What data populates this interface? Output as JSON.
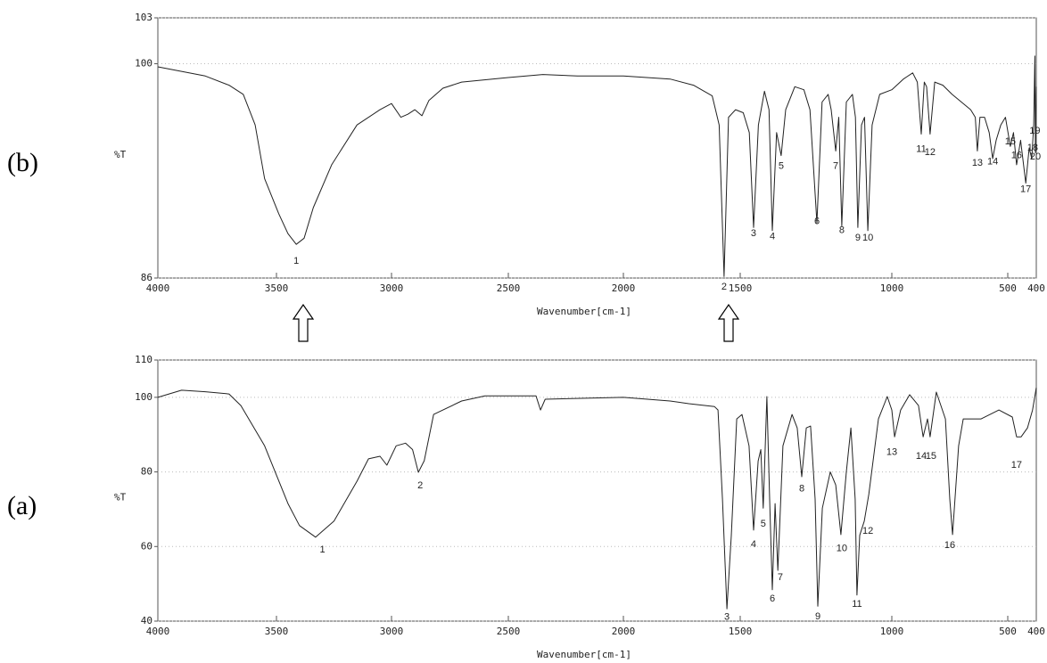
{
  "chart_data": [
    {
      "type": "line",
      "panel_label": "(b)",
      "ylabel": "%T",
      "xlabel": "Wavenumber[cm-1]",
      "xlim": [
        4000,
        400
      ],
      "xticks": [
        4000,
        3500,
        3000,
        2500,
        2000,
        1500,
        1000,
        500,
        400
      ],
      "ylim": [
        86,
        103
      ],
      "yticks": [
        86,
        100,
        103
      ],
      "grid": true,
      "color": "#222222",
      "x": [
        4000,
        3900,
        3800,
        3700,
        3640,
        3590,
        3550,
        3490,
        3450,
        3414,
        3380,
        3340,
        3260,
        3150,
        3050,
        3000,
        2960,
        2930,
        2900,
        2870,
        2840,
        2780,
        2700,
        2500,
        2350,
        2200,
        2000,
        1800,
        1700,
        1620,
        1590,
        1569,
        1550,
        1520,
        1490,
        1470,
        1456,
        1440,
        1420,
        1405,
        1394,
        1380,
        1365,
        1350,
        1320,
        1290,
        1270,
        1247,
        1230,
        1210,
        1200,
        1185,
        1175,
        1165,
        1150,
        1130,
        1120,
        1112,
        1100,
        1090,
        1079,
        1065,
        1040,
        1000,
        950,
        910,
        890,
        873,
        860,
        850,
        835,
        815,
        780,
        740,
        700,
        660,
        640,
        631,
        620,
        600,
        580,
        565,
        550,
        530,
        510,
        491,
        480,
        469,
        455,
        437,
        425,
        416,
        409,
        405,
        403,
        400
      ],
      "values": [
        99.8,
        99.5,
        99.2,
        98.6,
        98.0,
        96.0,
        92.5,
        90.2,
        88.9,
        88.2,
        88.6,
        90.6,
        93.4,
        96.0,
        97.0,
        97.4,
        96.5,
        96.7,
        97.0,
        96.6,
        97.6,
        98.4,
        98.8,
        99.1,
        99.3,
        99.2,
        99.2,
        99.0,
        98.6,
        97.9,
        96.0,
        86.1,
        96.5,
        97.0,
        96.8,
        95.5,
        89.3,
        96.0,
        98.2,
        97.0,
        89.1,
        95.5,
        94.0,
        97.0,
        98.5,
        98.3,
        97.0,
        89.6,
        97.5,
        98.0,
        97.0,
        94.3,
        96.5,
        89.4,
        97.5,
        98.0,
        96.5,
        89.3,
        96.0,
        96.5,
        89.1,
        96.0,
        98.0,
        98.3,
        99.0,
        99.4,
        98.8,
        95.4,
        98.8,
        98.5,
        95.4,
        98.8,
        98.6,
        98.0,
        97.5,
        97.0,
        96.5,
        94.3,
        96.5,
        96.5,
        95.5,
        93.8,
        95.0,
        96.0,
        96.5,
        94.6,
        95.5,
        93.4,
        95.0,
        92.2,
        94.5,
        93.8,
        96.0,
        100.5,
        94.2,
        98.5
      ],
      "annotations": [
        {
          "text": "1",
          "x": 3414,
          "y": 87.1
        },
        {
          "text": "2",
          "x": 1569,
          "y": 85.4
        },
        {
          "text": "3",
          "x": 1456,
          "y": 88.9
        },
        {
          "text": "4",
          "x": 1394,
          "y": 88.7
        },
        {
          "text": "5",
          "x": 1365,
          "y": 93.3
        },
        {
          "text": "6",
          "x": 1247,
          "y": 89.7
        },
        {
          "text": "7",
          "x": 1185,
          "y": 93.3
        },
        {
          "text": "8",
          "x": 1165,
          "y": 89.1
        },
        {
          "text": "9",
          "x": 1112,
          "y": 88.6
        },
        {
          "text": "10",
          "x": 1079,
          "y": 88.6
        },
        {
          "text": "11",
          "x": 873,
          "y": 94.4
        },
        {
          "text": "12",
          "x": 835,
          "y": 94.2
        },
        {
          "text": "13",
          "x": 631,
          "y": 93.5
        },
        {
          "text": "14",
          "x": 565,
          "y": 93.6
        },
        {
          "text": "15",
          "x": 491,
          "y": 94.9
        },
        {
          "text": "16",
          "x": 469,
          "y": 94.0
        },
        {
          "text": "17",
          "x": 437,
          "y": 91.8
        },
        {
          "text": "18",
          "x": 413,
          "y": 94.5
        },
        {
          "text": "19",
          "x": 405,
          "y": 95.6
        },
        {
          "text": "20",
          "x": 403,
          "y": 93.9
        }
      ]
    },
    {
      "type": "line",
      "panel_label": "(a)",
      "ylabel": "%T",
      "xlabel": "Wavenumber[cm-1]",
      "xlim": [
        4000,
        400
      ],
      "xticks": [
        4000,
        3500,
        3000,
        2500,
        2000,
        1500,
        1000,
        500,
        400
      ],
      "ylim": [
        40,
        110
      ],
      "yticks": [
        40,
        60,
        80,
        100,
        110
      ],
      "grid": true,
      "color": "#222222",
      "x": [
        4000,
        3900,
        3800,
        3700,
        3650,
        3550,
        3450,
        3400,
        3330,
        3250,
        3150,
        3100,
        3050,
        3020,
        2980,
        2940,
        2910,
        2885,
        2860,
        2820,
        2700,
        2600,
        2380,
        2360,
        2340,
        2000,
        1800,
        1720,
        1610,
        1595,
        1576,
        1557,
        1538,
        1515,
        1494,
        1471,
        1456,
        1441,
        1432,
        1424,
        1412,
        1403,
        1394,
        1385,
        1376,
        1359,
        1329,
        1312,
        1297,
        1282,
        1268,
        1253,
        1244,
        1229,
        1203,
        1185,
        1168,
        1150,
        1135,
        1121,
        1115,
        1106,
        1091,
        1076,
        1044,
        1015,
        1000,
        988,
        962,
        923,
        885,
        865,
        846,
        835,
        808,
        769,
        750,
        738,
        712,
        692,
        615,
        538,
        484,
        469,
        453,
        431,
        413,
        400
      ],
      "values": [
        100,
        101.9,
        101.5,
        100.9,
        97.8,
        87,
        71.5,
        65.6,
        62.5,
        66.8,
        77.5,
        83.5,
        84.2,
        81.8,
        87,
        87.7,
        86,
        79.9,
        83,
        95.4,
        99,
        100.4,
        100.4,
        96.6,
        99.5,
        100,
        99,
        98.3,
        97.5,
        96.6,
        72.7,
        43.3,
        62.9,
        94.2,
        95.4,
        87,
        64.4,
        82.9,
        86,
        70.3,
        100.2,
        72.7,
        48.4,
        71.5,
        53.6,
        87,
        95.4,
        91.8,
        78.7,
        91.8,
        92.3,
        72.7,
        44,
        70.3,
        80,
        76.5,
        63.2,
        80,
        91.8,
        72.7,
        47,
        63,
        66.8,
        74,
        94.2,
        100.2,
        96.6,
        89.4,
        96.6,
        100.7,
        97.8,
        89.4,
        94.2,
        89.4,
        101.4,
        94.2,
        72.7,
        63.2,
        87,
        94.2,
        94.2,
        96.6,
        94.7,
        89.4,
        89.4,
        91.8,
        96.6,
        102.6
      ],
      "annotations": [
        {
          "text": "1",
          "x": 3300,
          "y": 59.1
        },
        {
          "text": "2",
          "x": 2877,
          "y": 76.3
        },
        {
          "text": "3",
          "x": 1557,
          "y": 41
        },
        {
          "text": "4",
          "x": 1456,
          "y": 60.5
        },
        {
          "text": "5",
          "x": 1424,
          "y": 66
        },
        {
          "text": "6",
          "x": 1394,
          "y": 46
        },
        {
          "text": "7",
          "x": 1368,
          "y": 51.7
        },
        {
          "text": "8",
          "x": 1297,
          "y": 75.4
        },
        {
          "text": "9",
          "x": 1244,
          "y": 41.2
        },
        {
          "text": "10",
          "x": 1165,
          "y": 59.4
        },
        {
          "text": "11",
          "x": 1115,
          "y": 44.5
        },
        {
          "text": "12",
          "x": 1079,
          "y": 64.1
        },
        {
          "text": "13",
          "x": 1000,
          "y": 85.2
        },
        {
          "text": "14",
          "x": 873,
          "y": 84.2
        },
        {
          "text": "15",
          "x": 831,
          "y": 84.2
        },
        {
          "text": "16",
          "x": 750,
          "y": 60.3
        },
        {
          "text": "17",
          "x": 469,
          "y": 81.8
        }
      ]
    }
  ]
}
